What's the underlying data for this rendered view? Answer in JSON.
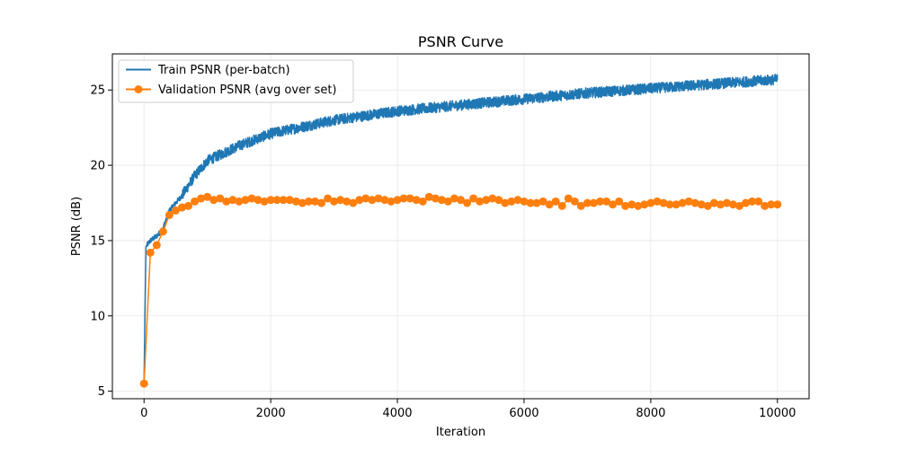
{
  "chart_data": {
    "type": "line",
    "title": "PSNR Curve",
    "xlabel": "Iteration",
    "ylabel": "PSNR (dB)",
    "xlim": [
      -500,
      10500
    ],
    "ylim": [
      4.5,
      27.4
    ],
    "xticks": [
      0,
      2000,
      4000,
      6000,
      8000,
      10000
    ],
    "yticks": [
      5,
      10,
      15,
      20,
      25
    ],
    "grid": true,
    "legend_position": "top-left",
    "colors": {
      "train": "#1f77b4",
      "val": "#ff7f0e"
    },
    "series": [
      {
        "name": "Train PSNR (per-batch)",
        "kind": "noisy-line",
        "anchors": [
          [
            0,
            5.6
          ],
          [
            30,
            14.6
          ],
          [
            100,
            15.0
          ],
          [
            200,
            15.3
          ],
          [
            300,
            15.8
          ],
          [
            400,
            17.0
          ],
          [
            600,
            18.0
          ],
          [
            800,
            19.3
          ],
          [
            1000,
            20.3
          ],
          [
            1500,
            21.3
          ],
          [
            2000,
            22.1
          ],
          [
            3000,
            23.0
          ],
          [
            4000,
            23.6
          ],
          [
            5000,
            24.0
          ],
          [
            6000,
            24.4
          ],
          [
            7000,
            24.8
          ],
          [
            8000,
            25.1
          ],
          [
            9000,
            25.4
          ],
          [
            10000,
            25.7
          ]
        ],
        "noise_amplitude_db": 0.35
      },
      {
        "name": "Validation PSNR (avg over set)",
        "kind": "line-markers",
        "x": [
          0,
          100,
          200,
          300,
          400,
          500,
          600,
          700,
          800,
          900,
          1000,
          1100,
          1200,
          1300,
          1400,
          1500,
          1600,
          1700,
          1800,
          1900,
          2000,
          2100,
          2200,
          2300,
          2400,
          2500,
          2600,
          2700,
          2800,
          2900,
          3000,
          3100,
          3200,
          3300,
          3400,
          3500,
          3600,
          3700,
          3800,
          3900,
          4000,
          4100,
          4200,
          4300,
          4400,
          4500,
          4600,
          4700,
          4800,
          4900,
          5000,
          5100,
          5200,
          5300,
          5400,
          5500,
          5600,
          5700,
          5800,
          5900,
          6000,
          6100,
          6200,
          6300,
          6400,
          6500,
          6600,
          6700,
          6800,
          6900,
          7000,
          7100,
          7200,
          7300,
          7400,
          7500,
          7600,
          7700,
          7800,
          7900,
          8000,
          8100,
          8200,
          8300,
          8400,
          8500,
          8600,
          8700,
          8800,
          8900,
          9000,
          9100,
          9200,
          9300,
          9400,
          9500,
          9600,
          9700,
          9800,
          9900,
          10000
        ],
        "y": [
          5.5,
          14.2,
          14.7,
          15.6,
          16.7,
          17.0,
          17.2,
          17.3,
          17.6,
          17.8,
          17.9,
          17.7,
          17.8,
          17.6,
          17.7,
          17.6,
          17.7,
          17.8,
          17.7,
          17.6,
          17.7,
          17.7,
          17.7,
          17.7,
          17.6,
          17.5,
          17.6,
          17.6,
          17.5,
          17.8,
          17.6,
          17.7,
          17.6,
          17.5,
          17.7,
          17.8,
          17.7,
          17.8,
          17.7,
          17.6,
          17.7,
          17.8,
          17.8,
          17.7,
          17.6,
          17.9,
          17.8,
          17.7,
          17.6,
          17.8,
          17.7,
          17.5,
          17.8,
          17.6,
          17.7,
          17.8,
          17.7,
          17.5,
          17.6,
          17.7,
          17.6,
          17.5,
          17.5,
          17.6,
          17.4,
          17.6,
          17.3,
          17.8,
          17.6,
          17.3,
          17.5,
          17.5,
          17.6,
          17.6,
          17.4,
          17.6,
          17.3,
          17.4,
          17.3,
          17.4,
          17.5,
          17.6,
          17.5,
          17.4,
          17.4,
          17.5,
          17.6,
          17.5,
          17.4,
          17.3,
          17.5,
          17.4,
          17.5,
          17.4,
          17.3,
          17.5,
          17.6,
          17.6,
          17.3,
          17.4,
          17.4
        ]
      }
    ]
  }
}
